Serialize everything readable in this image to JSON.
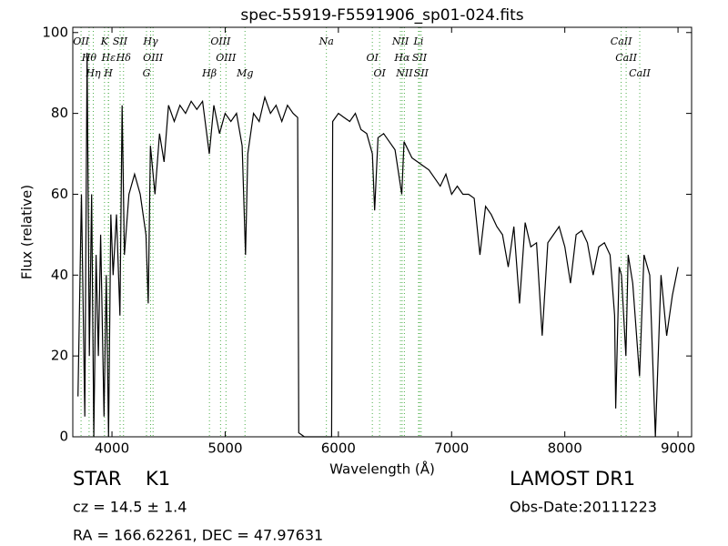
{
  "chart_data": {
    "type": "line",
    "title": "spec-55919-F5591906_sp01-024.fits",
    "x_label": "Wavelength (Å)",
    "y_label": "Flux (relative)",
    "xlim": [
      3654,
      9120
    ],
    "ylim": [
      0,
      101.3
    ],
    "xticks": [
      4000,
      5000,
      6000,
      7000,
      8000,
      9000
    ],
    "yticks": [
      0,
      20,
      40,
      60,
      80,
      100
    ],
    "color": "#000000",
    "line_color": "#4daf4a",
    "x": [
      3700,
      3730,
      3760,
      3780,
      3800,
      3820,
      3840,
      3860,
      3880,
      3900,
      3930,
      3950,
      3970,
      3990,
      4010,
      4040,
      4070,
      4090,
      4110,
      4150,
      4200,
      4250,
      4300,
      4320,
      4340,
      4380,
      4420,
      4460,
      4500,
      4550,
      4600,
      4650,
      4700,
      4750,
      4800,
      4860,
      4900,
      4950,
      5000,
      5050,
      5100,
      5150,
      5180,
      5200,
      5250,
      5300,
      5350,
      5400,
      5450,
      5500,
      5550,
      5600,
      5640,
      5650,
      5700,
      5800,
      5900,
      5940,
      5950,
      6000,
      6050,
      6100,
      6150,
      6200,
      6250,
      6300,
      6320,
      6350,
      6400,
      6450,
      6500,
      6560,
      6580,
      6650,
      6700,
      6750,
      6800,
      6850,
      6900,
      6950,
      7000,
      7050,
      7100,
      7150,
      7200,
      7250,
      7300,
      7350,
      7400,
      7450,
      7500,
      7550,
      7600,
      7650,
      7700,
      7750,
      7800,
      7850,
      7900,
      7950,
      8000,
      8050,
      8100,
      8150,
      8200,
      8250,
      8300,
      8350,
      8400,
      8440,
      8450,
      8480,
      8500,
      8540,
      8560,
      8600,
      8660,
      8700,
      8750,
      8800,
      8850,
      8900,
      8950,
      9000
    ],
    "values": [
      10,
      60,
      5,
      95,
      20,
      60,
      0,
      45,
      20,
      50,
      5,
      40,
      0,
      55,
      40,
      55,
      30,
      82,
      45,
      60,
      65,
      60,
      50,
      33,
      72,
      60,
      75,
      68,
      82,
      78,
      82,
      80,
      83,
      81,
      83,
      70,
      82,
      75,
      80,
      78,
      80,
      72,
      45,
      70,
      80,
      78,
      84,
      80,
      82,
      78,
      82,
      80,
      79,
      1,
      0,
      0,
      0,
      0,
      78,
      80,
      79,
      78,
      80,
      76,
      75,
      70,
      56,
      74,
      75,
      73,
      71,
      60,
      73,
      69,
      68,
      67,
      66,
      64,
      62,
      65,
      60,
      62,
      60,
      60,
      59,
      45,
      57,
      55,
      52,
      50,
      42,
      52,
      33,
      53,
      47,
      48,
      25,
      48,
      50,
      52,
      47,
      38,
      50,
      51,
      48,
      40,
      47,
      48,
      45,
      30,
      7,
      42,
      40,
      20,
      45,
      38,
      15,
      45,
      40,
      0,
      40,
      25,
      35,
      42
    ],
    "lines": [
      {
        "label": "OII",
        "x": 3727
      },
      {
        "label": "Hθ",
        "x": 3798
      },
      {
        "label": "Hη",
        "x": 3835
      },
      {
        "label": "K",
        "x": 3934
      },
      {
        "label": "Hε",
        "x": 3970
      },
      {
        "label": "H",
        "x": 3968
      },
      {
        "label": "SII",
        "x": 4072
      },
      {
        "label": "Hδ",
        "x": 4102
      },
      {
        "label": "G",
        "x": 4305
      },
      {
        "label": "Hγ",
        "x": 4341
      },
      {
        "label": "OIII",
        "x": 4363
      },
      {
        "label": "Hβ",
        "x": 4861
      },
      {
        "label": "OIII",
        "x": 4959
      },
      {
        "label": "OIII",
        "x": 5007
      },
      {
        "label": "Mg",
        "x": 5175
      },
      {
        "label": "Na",
        "x": 5894
      },
      {
        "label": "OI",
        "x": 6300
      },
      {
        "label": "OI",
        "x": 6364
      },
      {
        "label": "NII",
        "x": 6548
      },
      {
        "label": "Hα",
        "x": 6563
      },
      {
        "label": "NII",
        "x": 6583
      },
      {
        "label": "Li",
        "x": 6708
      },
      {
        "label": "SII",
        "x": 6717
      },
      {
        "label": "SII",
        "x": 6731
      },
      {
        "label": "CaII",
        "x": 8498
      },
      {
        "label": "CaII",
        "x": 8542
      },
      {
        "label": "CaII",
        "x": 8662
      }
    ],
    "object_class": "STAR",
    "subclass": "K1",
    "survey": "LAMOST DR1",
    "redshift": "cz = 14.5 ± 1.4",
    "obs_date": "Obs-Date:20111223",
    "coords": "RA = 166.62261, DEC = 47.97631"
  }
}
